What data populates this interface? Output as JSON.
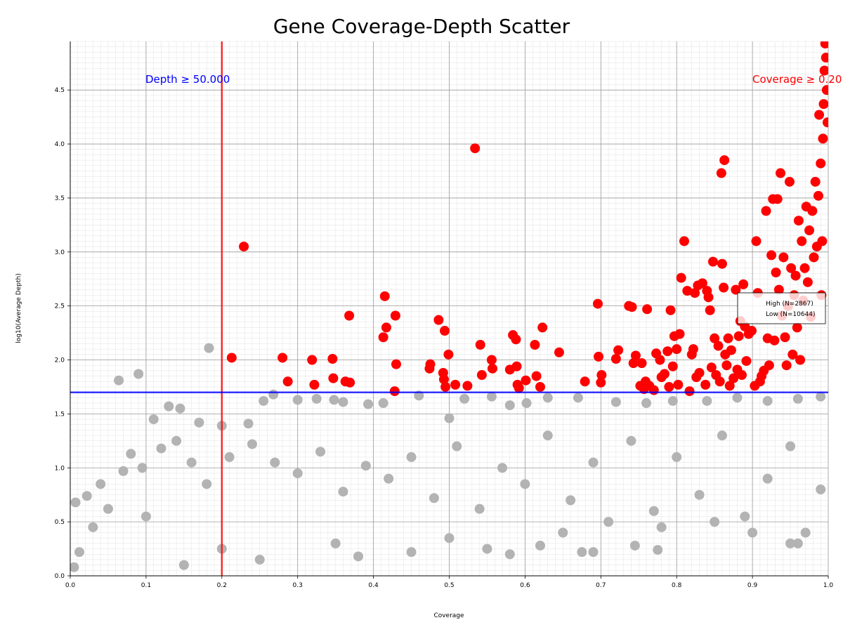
{
  "chart_data": {
    "type": "scatter",
    "title": "Gene Coverage-Depth Scatter",
    "xlabel": "Coverage",
    "ylabel": "log10(Average Depth)",
    "xlim": [
      0.0,
      1.0
    ],
    "ylim": [
      0.0,
      4.95
    ],
    "x_ticks": [
      "0.0",
      "0.1",
      "0.2",
      "0.3",
      "0.4",
      "0.5",
      "0.6",
      "0.7",
      "0.8",
      "0.9",
      "1.0"
    ],
    "y_ticks": [
      "0.0",
      "0.5",
      "1.0",
      "1.5",
      "2.0",
      "2.5",
      "3.0",
      "3.5",
      "4.0",
      "4.5"
    ],
    "grid": true,
    "legend_position": "center-right",
    "thresholds": {
      "coverage": {
        "value": 0.2,
        "label": "Coverage ≥ 0.20",
        "color": "#ff0000"
      },
      "depth": {
        "value": 1.699,
        "label": "Depth ≥ 50.000",
        "color": "#0000ff"
      }
    },
    "series": [
      {
        "name": "High (N=2867)",
        "color": "#ff0000",
        "points": [
          [
            0.229,
            3.05
          ],
          [
            0.213,
            2.02
          ],
          [
            0.28,
            2.02
          ],
          [
            0.287,
            1.8
          ],
          [
            0.319,
            2.0
          ],
          [
            0.322,
            1.77
          ],
          [
            0.346,
            2.01
          ],
          [
            0.347,
            1.83
          ],
          [
            0.363,
            1.8
          ],
          [
            0.368,
            2.41
          ],
          [
            0.369,
            1.79
          ],
          [
            0.413,
            2.21
          ],
          [
            0.415,
            2.59
          ],
          [
            0.417,
            2.3
          ],
          [
            0.428,
            1.71
          ],
          [
            0.429,
            2.41
          ],
          [
            0.43,
            1.96
          ],
          [
            0.474,
            1.92
          ],
          [
            0.475,
            1.96
          ],
          [
            0.486,
            2.37
          ],
          [
            0.492,
            1.88
          ],
          [
            0.493,
            1.82
          ],
          [
            0.494,
            2.27
          ],
          [
            0.495,
            1.75
          ],
          [
            0.499,
            2.05
          ],
          [
            0.508,
            1.77
          ],
          [
            0.524,
            1.76
          ],
          [
            0.534,
            3.96
          ],
          [
            0.541,
            2.14
          ],
          [
            0.543,
            1.86
          ],
          [
            0.556,
            2.0
          ],
          [
            0.557,
            1.92
          ],
          [
            0.58,
            1.91
          ],
          [
            0.584,
            2.23
          ],
          [
            0.588,
            2.19
          ],
          [
            0.589,
            1.94
          ],
          [
            0.59,
            1.77
          ],
          [
            0.592,
            1.74
          ],
          [
            0.601,
            1.81
          ],
          [
            0.613,
            2.14
          ],
          [
            0.615,
            1.85
          ],
          [
            0.62,
            1.75
          ],
          [
            0.623,
            2.3
          ],
          [
            0.645,
            2.07
          ],
          [
            0.679,
            1.8
          ],
          [
            0.696,
            2.52
          ],
          [
            0.697,
            2.03
          ],
          [
            0.7,
            1.79
          ],
          [
            0.701,
            1.86
          ],
          [
            0.72,
            2.01
          ],
          [
            0.723,
            2.09
          ],
          [
            0.737,
            2.5
          ],
          [
            0.741,
            2.49
          ],
          [
            0.743,
            1.97
          ],
          [
            0.746,
            2.04
          ],
          [
            0.752,
            1.76
          ],
          [
            0.754,
            1.97
          ],
          [
            0.757,
            1.73
          ],
          [
            0.759,
            1.8
          ],
          [
            0.761,
            2.47
          ],
          [
            0.764,
            1.76
          ],
          [
            0.77,
            1.72
          ],
          [
            0.773,
            2.06
          ],
          [
            0.778,
            2.0
          ],
          [
            0.78,
            1.84
          ],
          [
            0.784,
            1.87
          ],
          [
            0.788,
            2.08
          ],
          [
            0.79,
            1.75
          ],
          [
            0.792,
            2.46
          ],
          [
            0.795,
            1.94
          ],
          [
            0.797,
            2.22
          ],
          [
            0.8,
            2.1
          ],
          [
            0.802,
            1.77
          ],
          [
            0.804,
            2.24
          ],
          [
            0.806,
            2.76
          ],
          [
            0.81,
            3.1
          ],
          [
            0.814,
            2.64
          ],
          [
            0.817,
            1.71
          ],
          [
            0.82,
            2.05
          ],
          [
            0.822,
            2.1
          ],
          [
            0.824,
            2.62
          ],
          [
            0.826,
            1.84
          ],
          [
            0.828,
            2.69
          ],
          [
            0.83,
            1.88
          ],
          [
            0.834,
            2.71
          ],
          [
            0.838,
            1.77
          ],
          [
            0.84,
            2.64
          ],
          [
            0.842,
            2.58
          ],
          [
            0.844,
            2.46
          ],
          [
            0.846,
            1.93
          ],
          [
            0.848,
            2.91
          ],
          [
            0.85,
            2.2
          ],
          [
            0.852,
            1.86
          ],
          [
            0.855,
            2.13
          ],
          [
            0.857,
            1.8
          ],
          [
            0.859,
            3.73
          ],
          [
            0.86,
            2.89
          ],
          [
            0.862,
            2.67
          ],
          [
            0.863,
            3.85
          ],
          [
            0.864,
            2.05
          ],
          [
            0.866,
            1.95
          ],
          [
            0.868,
            2.2
          ],
          [
            0.87,
            1.76
          ],
          [
            0.872,
            2.09
          ],
          [
            0.875,
            1.83
          ],
          [
            0.878,
            2.65
          ],
          [
            0.88,
            1.91
          ],
          [
            0.882,
            2.22
          ],
          [
            0.884,
            2.36
          ],
          [
            0.886,
            1.86
          ],
          [
            0.888,
            2.7
          ],
          [
            0.89,
            2.31
          ],
          [
            0.892,
            1.99
          ],
          [
            0.895,
            2.24
          ],
          [
            0.899,
            2.27
          ],
          [
            0.903,
            1.76
          ],
          [
            0.905,
            3.1
          ],
          [
            0.907,
            2.62
          ],
          [
            0.91,
            1.8
          ],
          [
            0.912,
            1.85
          ],
          [
            0.915,
            1.9
          ],
          [
            0.918,
            3.38
          ],
          [
            0.92,
            2.2
          ],
          [
            0.922,
            1.95
          ],
          [
            0.925,
            2.97
          ],
          [
            0.927,
            3.49
          ],
          [
            0.929,
            2.18
          ],
          [
            0.931,
            2.81
          ],
          [
            0.933,
            3.49
          ],
          [
            0.935,
            2.65
          ],
          [
            0.937,
            3.73
          ],
          [
            0.939,
            2.41
          ],
          [
            0.941,
            2.95
          ],
          [
            0.943,
            2.21
          ],
          [
            0.945,
            1.95
          ],
          [
            0.947,
            2.5
          ],
          [
            0.949,
            3.65
          ],
          [
            0.951,
            2.85
          ],
          [
            0.953,
            2.05
          ],
          [
            0.955,
            2.6
          ],
          [
            0.957,
            2.78
          ],
          [
            0.959,
            2.3
          ],
          [
            0.961,
            3.29
          ],
          [
            0.963,
            2.0
          ],
          [
            0.965,
            3.1
          ],
          [
            0.967,
            2.55
          ],
          [
            0.969,
            2.85
          ],
          [
            0.971,
            3.42
          ],
          [
            0.973,
            2.72
          ],
          [
            0.975,
            3.2
          ],
          [
            0.977,
            2.4
          ],
          [
            0.979,
            3.38
          ],
          [
            0.981,
            2.95
          ],
          [
            0.983,
            3.65
          ],
          [
            0.985,
            3.05
          ],
          [
            0.987,
            3.52
          ],
          [
            0.988,
            4.27
          ],
          [
            0.99,
            3.82
          ],
          [
            0.991,
            2.6
          ],
          [
            0.992,
            3.1
          ],
          [
            0.993,
            4.05
          ],
          [
            0.994,
            4.37
          ],
          [
            0.995,
            4.68
          ],
          [
            0.996,
            4.93
          ],
          [
            0.997,
            4.8
          ],
          [
            0.998,
            4.5
          ],
          [
            0.999,
            4.2
          ]
        ]
      },
      {
        "name": "Low (N=10644)",
        "color": "#b3b3b3",
        "points": [
          [
            0.064,
            1.81
          ],
          [
            0.09,
            1.87
          ],
          [
            0.183,
            2.11
          ],
          [
            0.11,
            1.45
          ],
          [
            0.13,
            1.57
          ],
          [
            0.145,
            1.55
          ],
          [
            0.17,
            1.42
          ],
          [
            0.2,
            1.39
          ],
          [
            0.235,
            1.41
          ],
          [
            0.255,
            1.62
          ],
          [
            0.268,
            1.68
          ],
          [
            0.3,
            1.63
          ],
          [
            0.325,
            1.64
          ],
          [
            0.348,
            1.63
          ],
          [
            0.36,
            1.61
          ],
          [
            0.393,
            1.59
          ],
          [
            0.413,
            1.6
          ],
          [
            0.46,
            1.67
          ],
          [
            0.5,
            1.46
          ],
          [
            0.52,
            1.64
          ],
          [
            0.556,
            1.66
          ],
          [
            0.58,
            1.58
          ],
          [
            0.602,
            1.6
          ],
          [
            0.63,
            1.65
          ],
          [
            0.67,
            1.65
          ],
          [
            0.72,
            1.61
          ],
          [
            0.76,
            1.6
          ],
          [
            0.795,
            1.62
          ],
          [
            0.84,
            1.62
          ],
          [
            0.88,
            1.65
          ],
          [
            0.92,
            1.62
          ],
          [
            0.96,
            1.64
          ],
          [
            0.99,
            1.66
          ],
          [
            0.007,
            0.68
          ],
          [
            0.022,
            0.74
          ],
          [
            0.012,
            0.22
          ],
          [
            0.005,
            0.08
          ],
          [
            0.03,
            0.45
          ],
          [
            0.04,
            0.85
          ],
          [
            0.05,
            0.62
          ],
          [
            0.07,
            0.97
          ],
          [
            0.08,
            1.13
          ],
          [
            0.095,
            1.0
          ],
          [
            0.1,
            0.55
          ],
          [
            0.12,
            1.18
          ],
          [
            0.14,
            1.25
          ],
          [
            0.16,
            1.05
          ],
          [
            0.18,
            0.85
          ],
          [
            0.21,
            1.1
          ],
          [
            0.24,
            1.22
          ],
          [
            0.27,
            1.05
          ],
          [
            0.3,
            0.95
          ],
          [
            0.33,
            1.15
          ],
          [
            0.36,
            0.78
          ],
          [
            0.39,
            1.02
          ],
          [
            0.42,
            0.9
          ],
          [
            0.45,
            1.1
          ],
          [
            0.48,
            0.72
          ],
          [
            0.51,
            1.2
          ],
          [
            0.54,
            0.62
          ],
          [
            0.57,
            1.0
          ],
          [
            0.6,
            0.85
          ],
          [
            0.63,
            1.3
          ],
          [
            0.66,
            0.7
          ],
          [
            0.69,
            1.05
          ],
          [
            0.71,
            0.5
          ],
          [
            0.74,
            1.25
          ],
          [
            0.77,
            0.6
          ],
          [
            0.8,
            1.1
          ],
          [
            0.83,
            0.75
          ],
          [
            0.86,
            1.3
          ],
          [
            0.89,
            0.55
          ],
          [
            0.92,
            0.9
          ],
          [
            0.95,
            1.2
          ],
          [
            0.97,
            0.4
          ],
          [
            0.99,
            0.8
          ],
          [
            0.675,
            0.22
          ],
          [
            0.69,
            0.22
          ],
          [
            0.745,
            0.28
          ],
          [
            0.775,
            0.24
          ],
          [
            0.95,
            0.3
          ],
          [
            0.96,
            0.3
          ],
          [
            0.55,
            0.25
          ],
          [
            0.58,
            0.2
          ],
          [
            0.62,
            0.28
          ],
          [
            0.45,
            0.22
          ],
          [
            0.38,
            0.18
          ],
          [
            0.25,
            0.15
          ],
          [
            0.15,
            0.1
          ],
          [
            0.9,
            0.4
          ],
          [
            0.85,
            0.5
          ],
          [
            0.78,
            0.45
          ],
          [
            0.65,
            0.4
          ],
          [
            0.5,
            0.35
          ],
          [
            0.35,
            0.3
          ],
          [
            0.2,
            0.25
          ]
        ]
      }
    ]
  }
}
